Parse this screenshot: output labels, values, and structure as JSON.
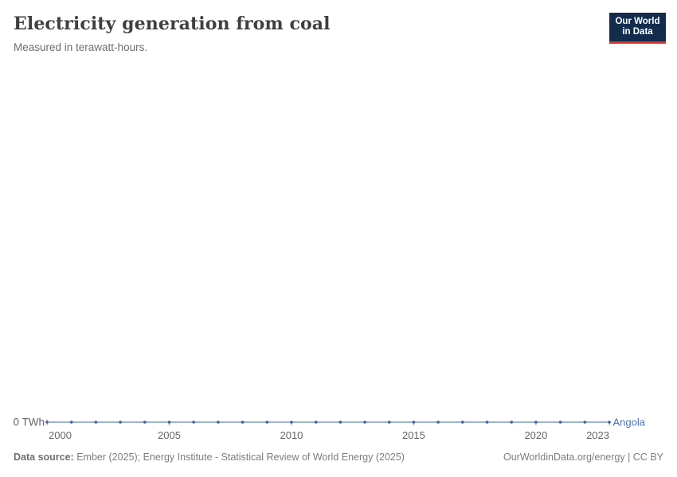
{
  "header": {
    "title": "Electricity generation from coal",
    "subtitle": "Measured in terawatt-hours."
  },
  "logo": {
    "line1": "Our World",
    "line2": "in Data",
    "bg_color": "#132c4e",
    "accent_color": "#d8342c"
  },
  "chart_data": {
    "type": "line",
    "title": "Electricity generation from coal",
    "unit": "terawatt-hours",
    "x": [
      2000,
      2001,
      2002,
      2003,
      2004,
      2005,
      2006,
      2007,
      2008,
      2009,
      2010,
      2011,
      2012,
      2013,
      2014,
      2015,
      2016,
      2017,
      2018,
      2019,
      2020,
      2021,
      2022,
      2023
    ],
    "series": [
      {
        "name": "Angola",
        "values": [
          0,
          0,
          0,
          0,
          0,
          0,
          0,
          0,
          0,
          0,
          0,
          0,
          0,
          0,
          0,
          0,
          0,
          0,
          0,
          0,
          0,
          0,
          0,
          0
        ]
      }
    ],
    "x_ticks": [
      "2000",
      "2005",
      "2010",
      "2015",
      "2020",
      "2023"
    ],
    "x_tick_values": [
      2000,
      2005,
      2010,
      2015,
      2020,
      2023
    ],
    "y_ticks": [
      {
        "value": 0,
        "label": "0 TWh"
      }
    ],
    "ylim": [
      0,
      1
    ],
    "grid": false,
    "legend_position": "end-of-line",
    "colors": {
      "line": "#7e9bc8",
      "marker": "#3d5c9e",
      "series_label": "#4c6fad",
      "axis": "#9aa0a6",
      "tick_label": "#666666"
    }
  },
  "footer": {
    "source_label": "Data source:",
    "source_text": " Ember (2025); Energy Institute - Statistical Review of World Energy (2025)",
    "link_text": "OurWorldinData.org/energy | CC BY"
  }
}
